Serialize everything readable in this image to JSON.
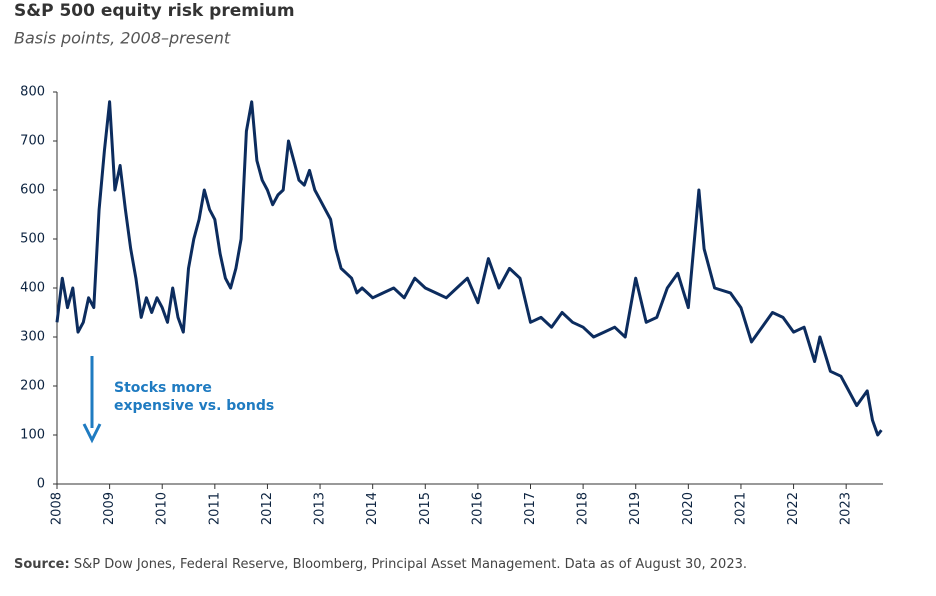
{
  "chart_data": {
    "type": "line",
    "title": "S&P 500 equity risk premium",
    "subtitle": "Basis points, 2008–present",
    "annotation": [
      "Stocks more",
      "expensive vs. bonds"
    ],
    "source_label": "Source:",
    "source": "S&P Dow Jones, Federal Reserve, Bloomberg, Principal Asset Management. Data as of August 30, 2023.",
    "xlim": [
      2008,
      2023.7
    ],
    "xticks": [
      2008,
      2009,
      2010,
      2011,
      2012,
      2013,
      2014,
      2015,
      2016,
      2017,
      2018,
      2019,
      2020,
      2021,
      2022,
      2023
    ],
    "ylim": [
      0,
      800
    ],
    "yticks": [
      0,
      100,
      200,
      300,
      400,
      500,
      600,
      700,
      800
    ],
    "series": [
      {
        "name": "S&P 500 equity risk premium",
        "color": "#0c2c5e",
        "x": [
          2008.0,
          2008.1,
          2008.2,
          2008.3,
          2008.4,
          2008.5,
          2008.6,
          2008.7,
          2008.8,
          2008.9,
          2009.0,
          2009.1,
          2009.2,
          2009.3,
          2009.4,
          2009.5,
          2009.6,
          2009.7,
          2009.8,
          2009.9,
          2010.0,
          2010.1,
          2010.2,
          2010.3,
          2010.4,
          2010.5,
          2010.6,
          2010.7,
          2010.8,
          2010.9,
          2011.0,
          2011.1,
          2011.2,
          2011.3,
          2011.4,
          2011.5,
          2011.6,
          2011.7,
          2011.8,
          2011.9,
          2012.0,
          2012.1,
          2012.2,
          2012.3,
          2012.4,
          2012.5,
          2012.6,
          2012.7,
          2012.8,
          2012.9,
          2013.0,
          2013.1,
          2013.2,
          2013.3,
          2013.4,
          2013.5,
          2013.6,
          2013.7,
          2013.8,
          2013.9,
          2014.0,
          2014.2,
          2014.4,
          2014.6,
          2014.8,
          2015.0,
          2015.2,
          2015.4,
          2015.6,
          2015.8,
          2016.0,
          2016.2,
          2016.4,
          2016.6,
          2016.8,
          2017.0,
          2017.2,
          2017.4,
          2017.6,
          2017.8,
          2018.0,
          2018.2,
          2018.4,
          2018.6,
          2018.8,
          2019.0,
          2019.2,
          2019.4,
          2019.6,
          2019.8,
          2020.0,
          2020.2,
          2020.3,
          2020.5,
          2020.8,
          2021.0,
          2021.2,
          2021.4,
          2021.6,
          2021.8,
          2022.0,
          2022.2,
          2022.4,
          2022.5,
          2022.7,
          2022.9,
          2023.0,
          2023.2,
          2023.4,
          2023.5,
          2023.6,
          2023.67
        ],
        "values": [
          330,
          420,
          360,
          400,
          310,
          330,
          380,
          360,
          560,
          680,
          780,
          600,
          650,
          560,
          480,
          420,
          340,
          380,
          350,
          380,
          360,
          330,
          400,
          340,
          310,
          440,
          500,
          540,
          600,
          560,
          540,
          470,
          420,
          400,
          440,
          500,
          720,
          780,
          660,
          620,
          600,
          570,
          590,
          600,
          700,
          660,
          620,
          610,
          640,
          600,
          580,
          560,
          540,
          480,
          440,
          430,
          420,
          390,
          400,
          390,
          380,
          390,
          400,
          380,
          420,
          400,
          390,
          380,
          400,
          420,
          370,
          460,
          400,
          440,
          420,
          330,
          340,
          320,
          350,
          330,
          320,
          300,
          310,
          320,
          300,
          420,
          330,
          340,
          400,
          430,
          360,
          600,
          480,
          400,
          390,
          360,
          290,
          320,
          350,
          340,
          310,
          320,
          250,
          300,
          230,
          220,
          200,
          160,
          190,
          130,
          100,
          110
        ]
      }
    ]
  }
}
